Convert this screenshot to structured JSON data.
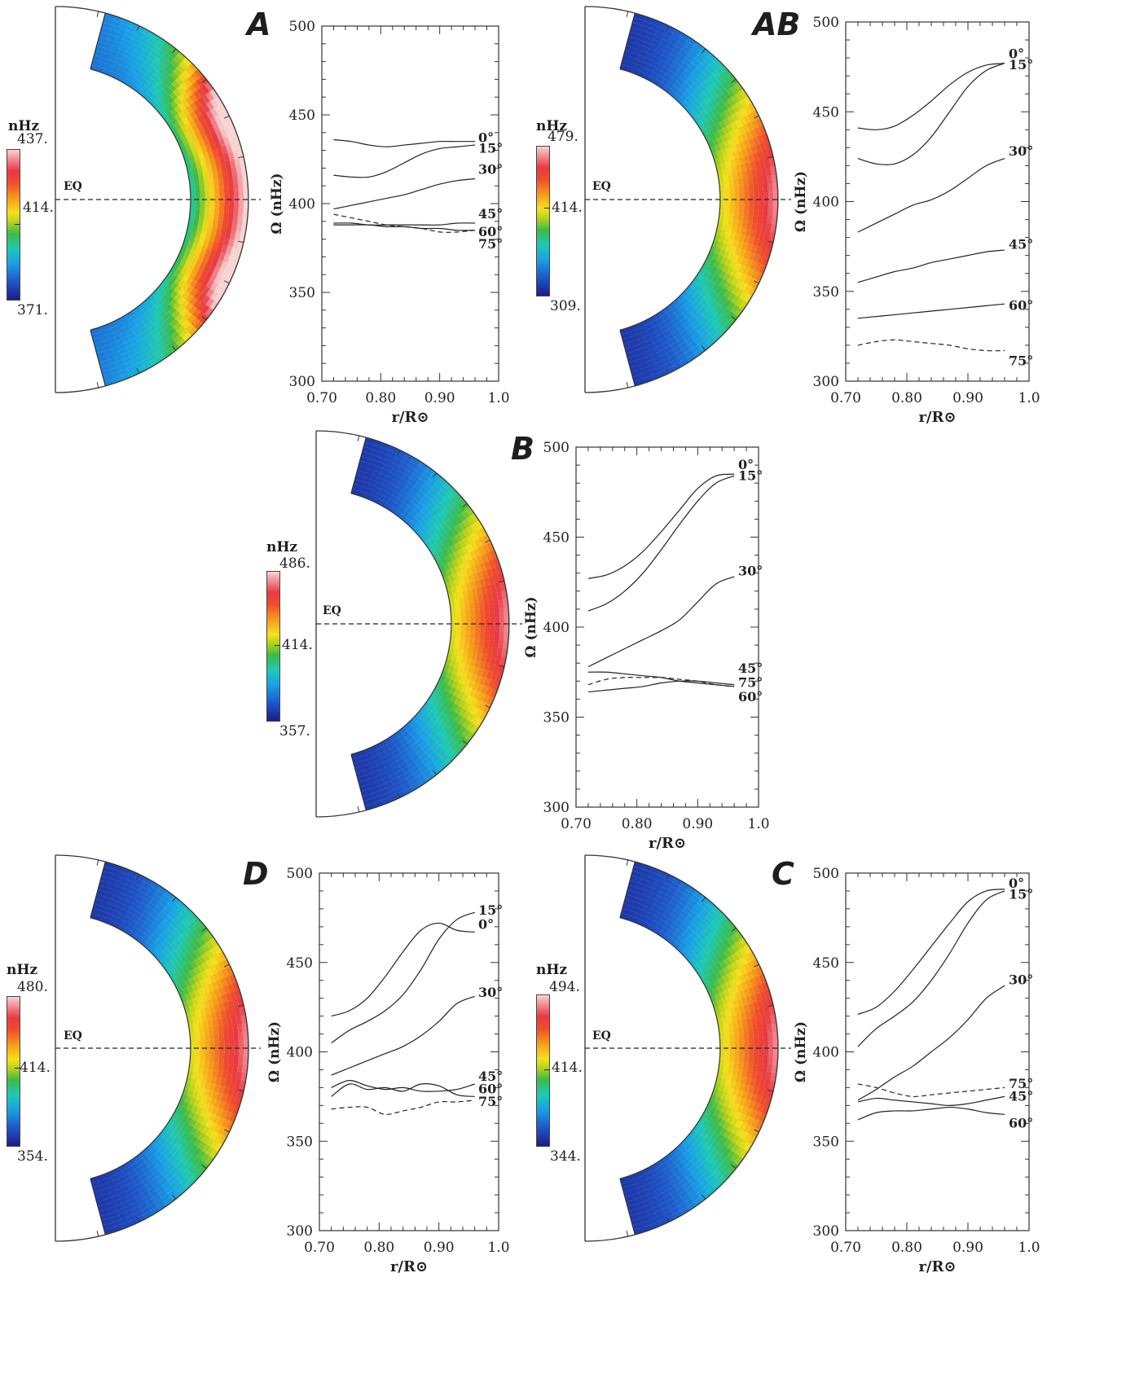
{
  "panels": [
    {
      "label": "A",
      "units": "nHz",
      "eq": "EQ",
      "cbar": {
        "max": "437.",
        "mid": "414.",
        "min": "371."
      }
    },
    {
      "label": "AB",
      "units": "nHz",
      "eq": "EQ",
      "cbar": {
        "max": "479.",
        "mid": "414.",
        "min": "309."
      }
    },
    {
      "label": "B",
      "units": "nHz",
      "eq": "EQ",
      "cbar": {
        "max": "486.",
        "mid": "414.",
        "min": "357."
      }
    },
    {
      "label": "D",
      "units": "nHz",
      "eq": "EQ",
      "cbar": {
        "max": "480.",
        "mid": "414.",
        "min": "354."
      }
    },
    {
      "label": "C",
      "units": "nHz",
      "eq": "EQ",
      "cbar": {
        "max": "494.",
        "mid": "414.",
        "min": "344."
      }
    }
  ],
  "chart_data": [
    {
      "type": "line",
      "id": "A",
      "xlabel": "r/R⊙",
      "ylabel": "Ω (nHz)",
      "xlim": [
        0.7,
        1.0
      ],
      "ylim": [
        300,
        500
      ],
      "xticks": [
        "0.70",
        "0.80",
        "0.90",
        "1.0"
      ],
      "yticks": [
        "300",
        "350",
        "400",
        "450",
        "500"
      ],
      "x": [
        0.72,
        0.75,
        0.78,
        0.81,
        0.84,
        0.87,
        0.9,
        0.93,
        0.96
      ],
      "series": [
        {
          "name": "0°",
          "values": [
            436,
            435,
            433,
            432,
            433,
            434,
            435,
            435,
            435
          ],
          "dashed": false
        },
        {
          "name": "15°",
          "values": [
            416,
            415,
            415,
            418,
            423,
            428,
            431,
            432,
            433
          ],
          "dashed": false
        },
        {
          "name": "30°",
          "values": [
            397,
            399,
            401,
            403,
            405,
            408,
            411,
            413,
            414
          ],
          "dashed": false
        },
        {
          "name": "45°",
          "values": [
            389,
            389,
            388,
            388,
            388,
            388,
            388,
            389,
            389
          ],
          "dashed": false
        },
        {
          "name": "60°",
          "values": [
            388,
            388,
            388,
            387,
            387,
            386,
            386,
            385,
            385
          ],
          "dashed": false
        },
        {
          "name": "75°",
          "values": [
            394,
            392,
            390,
            388,
            387,
            386,
            384,
            384,
            385
          ],
          "dashed": true
        }
      ],
      "labels": [
        {
          "text": "0°",
          "y": 437
        },
        {
          "text": "15°",
          "y": 431
        },
        {
          "text": "30°",
          "y": 419
        },
        {
          "text": "45°",
          "y": 394
        },
        {
          "text": "60°",
          "y": 384
        },
        {
          "text": "75°",
          "y": 377
        }
      ]
    },
    {
      "type": "line",
      "id": "AB",
      "xlabel": "r/R⊙",
      "ylabel": "Ω (nHz)",
      "xlim": [
        0.7,
        1.0
      ],
      "ylim": [
        300,
        500
      ],
      "xticks": [
        "0.70",
        "0.80",
        "0.90",
        "1.0"
      ],
      "yticks": [
        "300",
        "350",
        "400",
        "450",
        "500"
      ],
      "x": [
        0.72,
        0.75,
        0.78,
        0.81,
        0.84,
        0.87,
        0.9,
        0.93,
        0.96
      ],
      "series": [
        {
          "name": "0°",
          "values": [
            441,
            440,
            442,
            448,
            456,
            465,
            472,
            476,
            477
          ],
          "dashed": false
        },
        {
          "name": "15°",
          "values": [
            424,
            421,
            421,
            426,
            436,
            450,
            464,
            473,
            477
          ],
          "dashed": false
        },
        {
          "name": "30°",
          "values": [
            383,
            388,
            393,
            398,
            401,
            406,
            413,
            420,
            424
          ],
          "dashed": false
        },
        {
          "name": "45°",
          "values": [
            355,
            358,
            361,
            363,
            366,
            368,
            370,
            372,
            373
          ],
          "dashed": false
        },
        {
          "name": "60°",
          "values": [
            335,
            336,
            337,
            338,
            339,
            340,
            341,
            342,
            343
          ],
          "dashed": false
        },
        {
          "name": "75°",
          "values": [
            320,
            322,
            323,
            322,
            321,
            320,
            318,
            317,
            317
          ],
          "dashed": true
        }
      ],
      "labels": [
        {
          "text": "0°",
          "y": 482
        },
        {
          "text": "15°",
          "y": 476
        },
        {
          "text": "30°",
          "y": 428
        },
        {
          "text": "45°",
          "y": 376
        },
        {
          "text": "60°",
          "y": 342
        },
        {
          "text": "75°",
          "y": 311
        }
      ]
    },
    {
      "type": "line",
      "id": "B",
      "xlabel": "r/R⊙",
      "ylabel": "Ω (nHz)",
      "xlim": [
        0.7,
        1.0
      ],
      "ylim": [
        300,
        500
      ],
      "xticks": [
        "0.70",
        "0.80",
        "0.90",
        "1.0"
      ],
      "yticks": [
        "300",
        "350",
        "400",
        "450",
        "500"
      ],
      "x": [
        0.72,
        0.75,
        0.78,
        0.81,
        0.84,
        0.87,
        0.9,
        0.93,
        0.96
      ],
      "series": [
        {
          "name": "0°",
          "values": [
            427,
            429,
            434,
            442,
            453,
            465,
            477,
            484,
            485
          ],
          "dashed": false
        },
        {
          "name": "15°",
          "values": [
            409,
            413,
            420,
            430,
            443,
            457,
            470,
            480,
            484
          ],
          "dashed": false
        },
        {
          "name": "30°",
          "values": [
            378,
            383,
            388,
            393,
            398,
            404,
            414,
            424,
            428
          ],
          "dashed": false
        },
        {
          "name": "45°",
          "values": [
            375,
            375,
            374,
            373,
            372,
            370,
            369,
            368,
            367
          ],
          "dashed": false
        },
        {
          "name": "60°",
          "values": [
            364,
            365,
            366,
            367,
            369,
            370,
            370,
            369,
            368
          ],
          "dashed": false
        },
        {
          "name": "75°",
          "values": [
            368,
            371,
            372,
            372,
            372,
            371,
            370,
            368,
            367
          ],
          "dashed": true
        }
      ],
      "labels": [
        {
          "text": "0°",
          "y": 490
        },
        {
          "text": "15°",
          "y": 484
        },
        {
          "text": "30°",
          "y": 431
        },
        {
          "text": "45°",
          "y": 377
        },
        {
          "text": "75°",
          "y": 369
        },
        {
          "text": "60°",
          "y": 361
        }
      ]
    },
    {
      "type": "line",
      "id": "D",
      "xlabel": "r/R⊙",
      "ylabel": "Ω (nHz)",
      "xlim": [
        0.7,
        1.0
      ],
      "ylim": [
        300,
        500
      ],
      "xticks": [
        "0.70",
        "0.80",
        "0.90",
        "1.0"
      ],
      "yticks": [
        "300",
        "350",
        "400",
        "450",
        "500"
      ],
      "x": [
        0.72,
        0.75,
        0.78,
        0.81,
        0.84,
        0.87,
        0.9,
        0.93,
        0.96
      ],
      "series": [
        {
          "name": "0°",
          "values": [
            420,
            423,
            430,
            442,
            456,
            468,
            472,
            468,
            467
          ],
          "dashed": false
        },
        {
          "name": "15°",
          "values": [
            405,
            412,
            417,
            423,
            432,
            446,
            463,
            474,
            478
          ],
          "dashed": false
        },
        {
          "name": "30°",
          "values": [
            387,
            391,
            395,
            399,
            403,
            409,
            417,
            427,
            431
          ],
          "dashed": false
        },
        {
          "name": "45°",
          "values": [
            380,
            384,
            381,
            379,
            380,
            378,
            378,
            379,
            382
          ],
          "dashed": false
        },
        {
          "name": "60°",
          "values": [
            375,
            382,
            379,
            380,
            378,
            382,
            381,
            376,
            375
          ],
          "dashed": false
        },
        {
          "name": "75°",
          "values": [
            368,
            369,
            369,
            365,
            367,
            369,
            372,
            372,
            373
          ],
          "dashed": true
        }
      ],
      "labels": [
        {
          "text": "15°",
          "y": 479
        },
        {
          "text": "0°",
          "y": 471
        },
        {
          "text": "30°",
          "y": 433
        },
        {
          "text": "45°",
          "y": 386
        },
        {
          "text": "60°",
          "y": 379
        },
        {
          "text": "75°",
          "y": 372
        }
      ]
    },
    {
      "type": "line",
      "id": "C",
      "xlabel": "r/R⊙",
      "ylabel": "Ω (nHz)",
      "xlim": [
        0.7,
        1.0
      ],
      "ylim": [
        300,
        500
      ],
      "xticks": [
        "0.70",
        "0.80",
        "0.90",
        "1.0"
      ],
      "yticks": [
        "300",
        "350",
        "400",
        "450",
        "500"
      ],
      "x": [
        0.72,
        0.75,
        0.78,
        0.81,
        0.84,
        0.87,
        0.9,
        0.93,
        0.96
      ],
      "series": [
        {
          "name": "0°",
          "values": [
            421,
            425,
            434,
            446,
            459,
            472,
            484,
            490,
            491
          ],
          "dashed": false
        },
        {
          "name": "15°",
          "values": [
            403,
            413,
            420,
            428,
            440,
            455,
            472,
            485,
            490
          ],
          "dashed": false
        },
        {
          "name": "30°",
          "values": [
            373,
            379,
            386,
            392,
            400,
            408,
            418,
            430,
            437
          ],
          "dashed": false
        },
        {
          "name": "45°",
          "values": [
            372,
            374,
            373,
            372,
            371,
            370,
            371,
            373,
            375
          ],
          "dashed": false
        },
        {
          "name": "60°",
          "values": [
            362,
            366,
            367,
            367,
            368,
            369,
            368,
            366,
            365
          ],
          "dashed": false
        },
        {
          "name": "75°",
          "values": [
            382,
            380,
            377,
            375,
            376,
            377,
            378,
            379,
            380
          ],
          "dashed": true
        }
      ],
      "labels": [
        {
          "text": "0°",
          "y": 494
        },
        {
          "text": "15°",
          "y": 488
        },
        {
          "text": "30°",
          "y": 440
        },
        {
          "text": "75°",
          "y": 382
        },
        {
          "text": "45°",
          "y": 375
        },
        {
          "text": "60°",
          "y": 360
        }
      ]
    }
  ]
}
